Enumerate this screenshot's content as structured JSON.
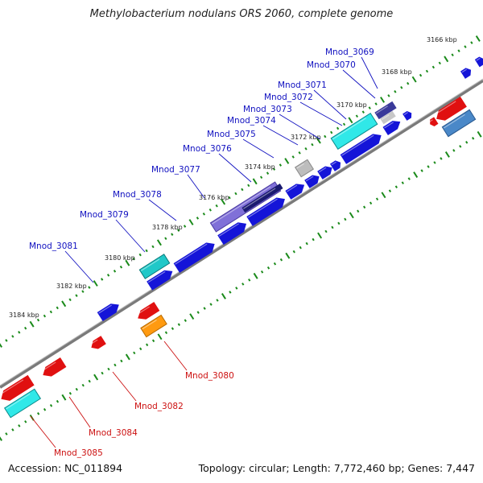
{
  "title": "Methylobacterium nodulans ORS 2060, complete genome",
  "footer": {
    "accession": "Accession: NC_011894",
    "topology": "Topology: circular; Length: 7,772,460 bp; Genes: 7,447"
  },
  "colors": {
    "backbone": "#7a7a7a",
    "tick": "#1a8a1a",
    "label_top": "#1010c0",
    "label_bottom": "#cc1010"
  },
  "kbp_labels": [
    "3166 kbp",
    "3168 kbp",
    "3170 kbp",
    "3172 kbp",
    "3174 kbp",
    "3176 kbp",
    "3178 kbp",
    "3180 kbp",
    "3182 kbp",
    "3184 kbp"
  ],
  "genes_top": [
    {
      "name": "Mnod_3069"
    },
    {
      "name": "Mnod_3070"
    },
    {
      "name": "Mnod_3071"
    },
    {
      "name": "Mnod_3072"
    },
    {
      "name": "Mnod_3073"
    },
    {
      "name": "Mnod_3074"
    },
    {
      "name": "Mnod_3075"
    },
    {
      "name": "Mnod_3076"
    },
    {
      "name": "Mnod_3077"
    },
    {
      "name": "Mnod_3078"
    },
    {
      "name": "Mnod_3079"
    },
    {
      "name": "Mnod_3081"
    }
  ],
  "genes_bottom": [
    {
      "name": "Mnod_3080"
    },
    {
      "name": "Mnod_3082"
    },
    {
      "name": "Mnod_3084"
    },
    {
      "name": "Mnod_3085"
    }
  ]
}
